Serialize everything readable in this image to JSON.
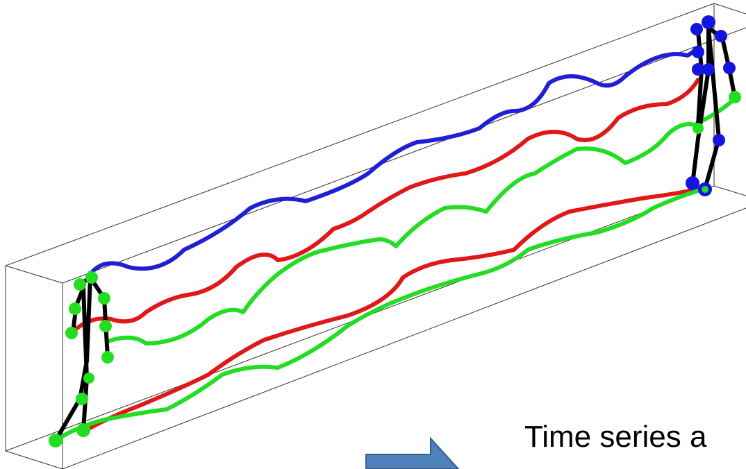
{
  "caption": "Time series a"
}
